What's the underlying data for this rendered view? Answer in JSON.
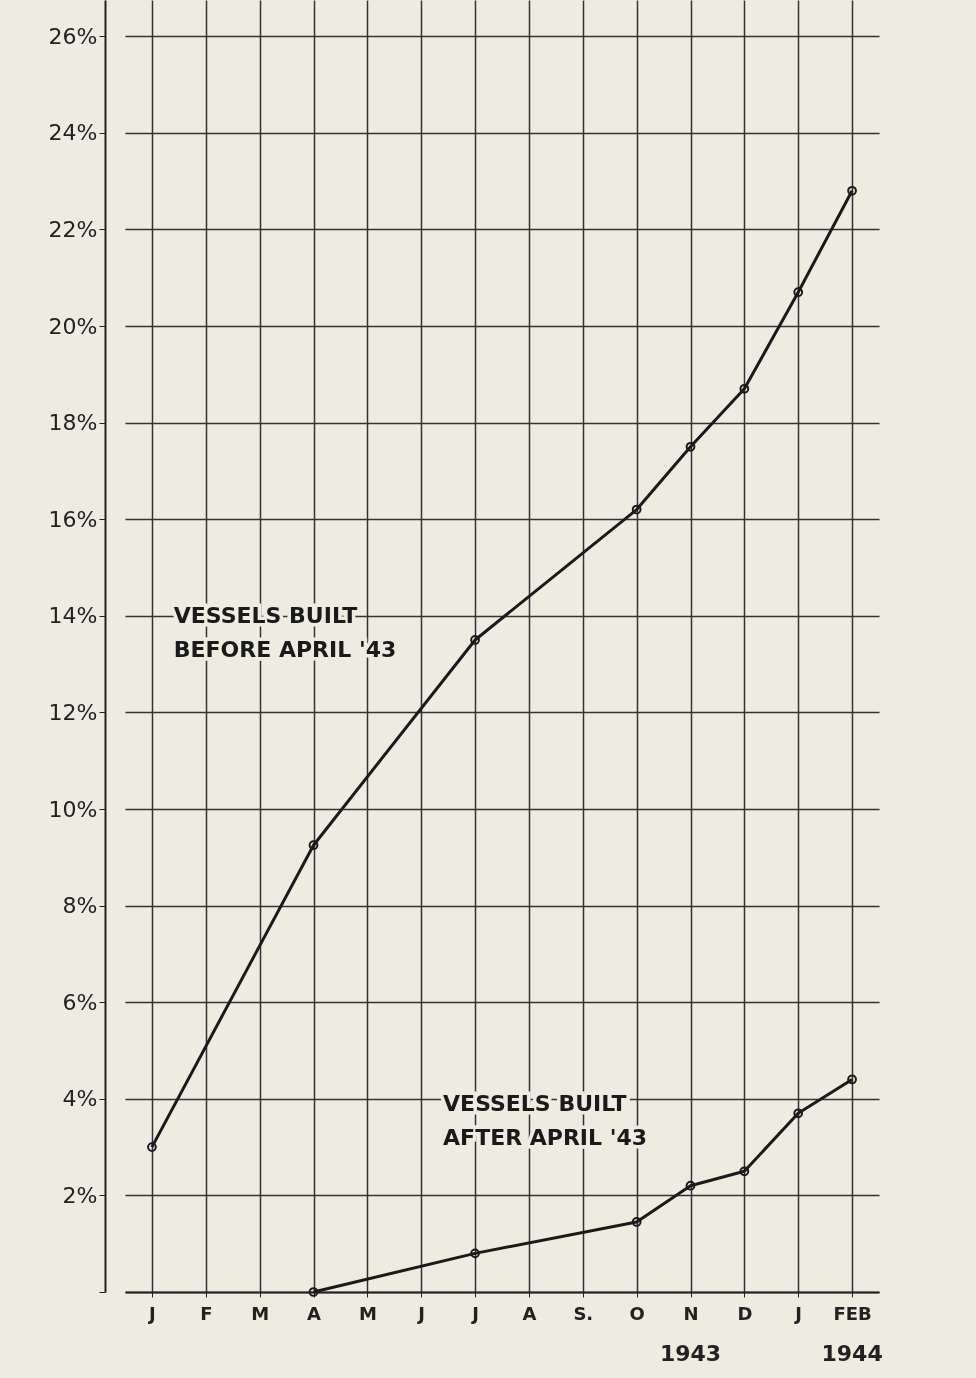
{
  "chart_data": {
    "type": "line",
    "categories": [
      "J",
      "F",
      "M",
      "A",
      "M",
      "J",
      "J",
      "A",
      "S.",
      "O",
      "N",
      "D",
      "J",
      "FEB"
    ],
    "series": [
      {
        "name": "VESSELS BUILT BEFORE APRIL '43",
        "color": "#1a1a1a",
        "values": [
          3.0,
          null,
          null,
          9.25,
          null,
          null,
          13.5,
          null,
          null,
          16.2,
          17.5,
          18.7,
          20.7,
          22.8
        ]
      },
      {
        "name": "VESSELS BUILT AFTER APRIL '43",
        "color": "#1a1a1a",
        "values": [
          null,
          null,
          null,
          0,
          null,
          null,
          0.8,
          null,
          null,
          1.45,
          2.2,
          2.5,
          3.7,
          4.4
        ]
      }
    ],
    "ylim": [
      0,
      26.75
    ],
    "yticks": [
      {
        "value": 0,
        "label": null
      },
      {
        "value": 2,
        "label": "2%"
      },
      {
        "value": 4,
        "label": "4%"
      },
      {
        "value": 6,
        "label": "6%"
      },
      {
        "value": 8,
        "label": "8%"
      },
      {
        "value": 10,
        "label": "10%"
      },
      {
        "value": 12,
        "label": "12%"
      },
      {
        "value": 14,
        "label": "14%"
      },
      {
        "value": 16,
        "label": "16%"
      },
      {
        "value": 18,
        "label": "18%"
      },
      {
        "value": 20,
        "label": "20%"
      },
      {
        "value": 22,
        "label": "22%"
      },
      {
        "value": 24,
        "label": "24%"
      },
      {
        "value": 26,
        "label": "26%"
      }
    ],
    "grid": true,
    "marker": "circle",
    "line_style": "solid",
    "annotations": [
      "1943",
      "1944"
    ]
  }
}
